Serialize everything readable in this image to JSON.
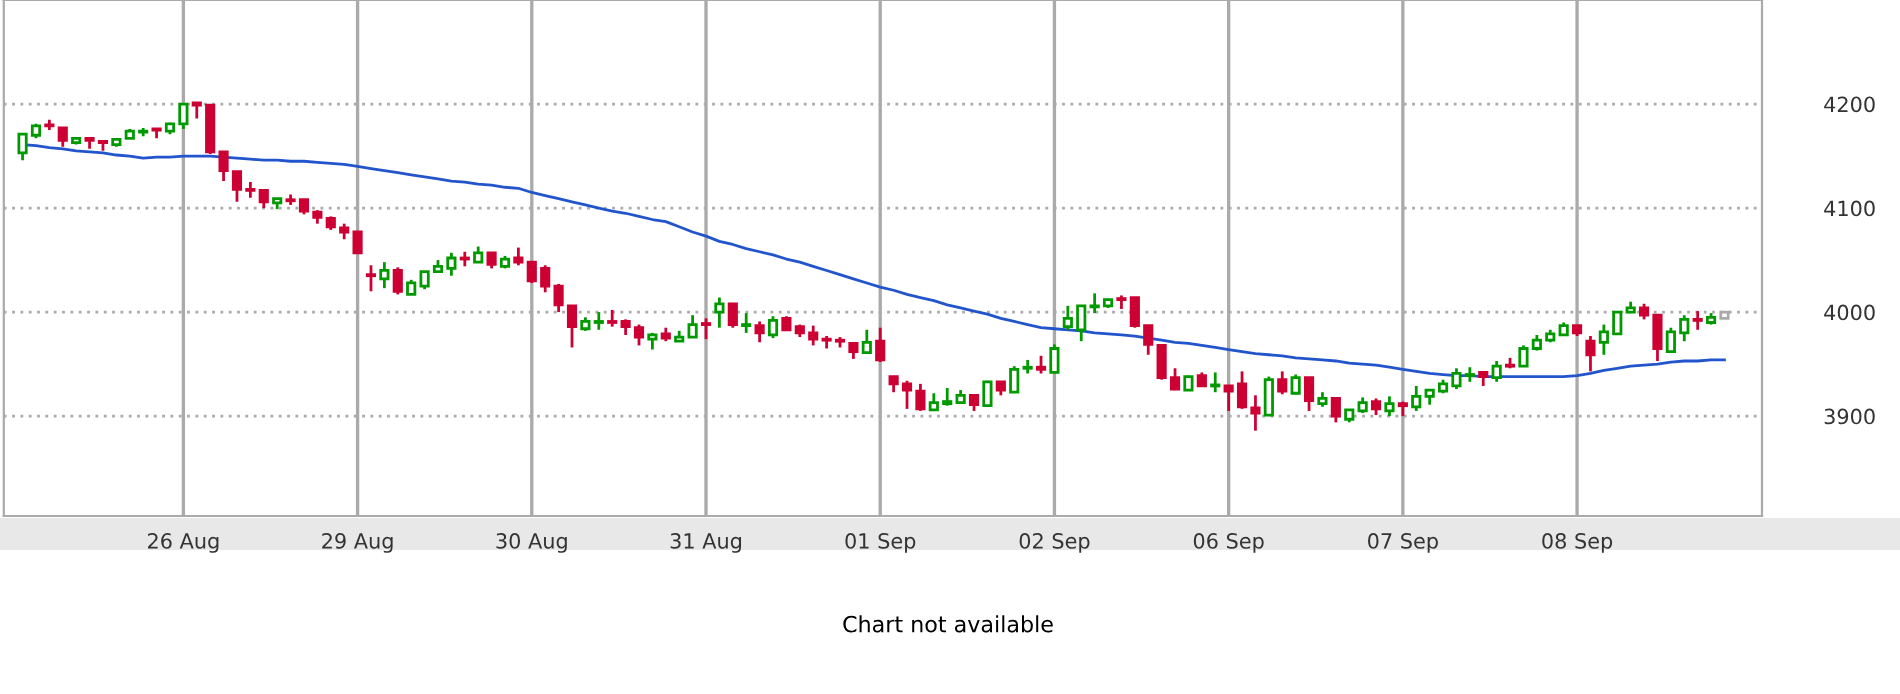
{
  "chart_data": {
    "type": "candlestick",
    "categories": [
      null,
      null,
      null,
      null,
      null,
      null,
      null,
      null,
      null,
      null,
      null,
      null,
      "26 Aug",
      null,
      null,
      null,
      null,
      null,
      null,
      null,
      null,
      null,
      null,
      null,
      null,
      "29 Aug",
      null,
      null,
      null,
      null,
      null,
      null,
      null,
      null,
      null,
      null,
      null,
      null,
      "30 Aug",
      null,
      null,
      null,
      null,
      null,
      null,
      null,
      null,
      null,
      null,
      null,
      null,
      "31 Aug",
      null,
      null,
      null,
      null,
      null,
      null,
      null,
      null,
      null,
      null,
      null,
      null,
      "01 Sep",
      null,
      null,
      null,
      null,
      null,
      null,
      null,
      null,
      null,
      null,
      null,
      null,
      "02 Sep",
      null,
      null,
      null,
      null,
      null,
      null,
      null,
      null,
      null,
      null,
      null,
      null,
      "06 Sep",
      null,
      null,
      null,
      null,
      null,
      null,
      null,
      null,
      null,
      null,
      null,
      null,
      "07 Sep",
      null,
      null,
      null,
      null,
      null,
      null,
      null,
      null,
      null,
      null,
      null,
      null,
      "08 Sep",
      null,
      null,
      null,
      null,
      null,
      null,
      null,
      null,
      null,
      null,
      null
    ],
    "ohlc": [
      [
        4153,
        4172,
        4146,
        4171
      ],
      [
        4170,
        4181,
        4167,
        4179
      ],
      [
        4180,
        4185,
        4175,
        4179
      ],
      [
        4177,
        4177,
        4159,
        4165
      ],
      [
        4163,
        4167,
        4161,
        4167
      ],
      [
        4167,
        4167,
        4157,
        4165
      ],
      [
        4164,
        4164,
        4155,
        4163
      ],
      [
        4161,
        4166,
        4159,
        4166
      ],
      [
        4167,
        4176,
        4167,
        4174
      ],
      [
        4173,
        4177,
        4169,
        4174
      ],
      [
        4176,
        4176,
        4167,
        4175
      ],
      [
        4174,
        4182,
        4171,
        4181
      ],
      [
        4181,
        4200,
        4176,
        4200
      ],
      [
        4201,
        4201,
        4186,
        4199
      ],
      [
        4199,
        4199,
        4152,
        4154
      ],
      [
        4154,
        4154,
        4126,
        4136
      ],
      [
        4135,
        4135,
        4106,
        4118
      ],
      [
        4118,
        4125,
        4110,
        4117
      ],
      [
        4117,
        4117,
        4100,
        4106
      ],
      [
        4105,
        4109,
        4099,
        4109
      ],
      [
        4108,
        4113,
        4103,
        4107
      ],
      [
        4108,
        4108,
        4094,
        4097
      ],
      [
        4096,
        4098,
        4085,
        4091
      ],
      [
        4090,
        4092,
        4079,
        4082
      ],
      [
        4081,
        4085,
        4070,
        4077
      ],
      [
        4077,
        4077,
        4057,
        4057
      ],
      [
        4036,
        4045,
        4020,
        4035
      ],
      [
        4032,
        4048,
        4023,
        4040
      ],
      [
        4040,
        4043,
        4017,
        4020
      ],
      [
        4017,
        4031,
        4017,
        4028
      ],
      [
        4025,
        4039,
        4022,
        4039
      ],
      [
        4039,
        4050,
        4039,
        4044
      ],
      [
        4042,
        4057,
        4035,
        4052
      ],
      [
        4052,
        4058,
        4044,
        4051
      ],
      [
        4048,
        4063,
        4048,
        4057
      ],
      [
        4057,
        4057,
        4042,
        4046
      ],
      [
        4044,
        4054,
        4042,
        4051
      ],
      [
        4052,
        4062,
        4045,
        4048
      ],
      [
        4048,
        4048,
        4028,
        4030
      ],
      [
        4042,
        4045,
        4019,
        4025
      ],
      [
        4025,
        4027,
        4000,
        4007
      ],
      [
        4006,
        4006,
        3966,
        3986
      ],
      [
        3984,
        3995,
        3982,
        3991
      ],
      [
        3990,
        4000,
        3983,
        3991
      ],
      [
        3991,
        4002,
        3986,
        3990
      ],
      [
        3991,
        3993,
        3978,
        3986
      ],
      [
        3985,
        3988,
        3968,
        3976
      ],
      [
        3974,
        3980,
        3964,
        3978
      ],
      [
        3979,
        3985,
        3972,
        3975
      ],
      [
        3972,
        3982,
        3972,
        3976
      ],
      [
        3976,
        3997,
        3976,
        3988
      ],
      [
        3989,
        3994,
        3974,
        3988
      ],
      [
        4000,
        4014,
        3985,
        4008
      ],
      [
        4008,
        4008,
        3985,
        3988
      ],
      [
        3987,
        3999,
        3980,
        3988
      ],
      [
        3987,
        3991,
        3971,
        3980
      ],
      [
        3978,
        3996,
        3975,
        3992
      ],
      [
        3994,
        3996,
        3983,
        3983
      ],
      [
        3986,
        3988,
        3976,
        3980
      ],
      [
        3980,
        3987,
        3968,
        3974
      ],
      [
        3974,
        3977,
        3965,
        3973
      ],
      [
        3973,
        3976,
        3966,
        3972
      ],
      [
        3970,
        3970,
        3955,
        3962
      ],
      [
        3961,
        3983,
        3961,
        3971
      ],
      [
        3972,
        3985,
        3952,
        3954
      ],
      [
        3938,
        3938,
        3923,
        3931
      ],
      [
        3931,
        3934,
        3907,
        3925
      ],
      [
        3924,
        3931,
        3905,
        3907
      ],
      [
        3906,
        3922,
        3906,
        3913
      ],
      [
        3912,
        3927,
        3910,
        3914
      ],
      [
        3913,
        3925,
        3913,
        3920
      ],
      [
        3920,
        3920,
        3905,
        3911
      ],
      [
        3910,
        3934,
        3909,
        3933
      ],
      [
        3933,
        3933,
        3920,
        3925
      ],
      [
        3923,
        3948,
        3923,
        3945
      ],
      [
        3946,
        3954,
        3941,
        3947
      ],
      [
        3947,
        3958,
        3941,
        3945
      ],
      [
        3942,
        3969,
        3941,
        3965
      ],
      [
        3986,
        4006,
        3983,
        3994
      ],
      [
        3983,
        4006,
        3972,
        4006
      ],
      [
        4005,
        4018,
        3999,
        4006
      ],
      [
        4006,
        4013,
        4004,
        4012
      ],
      [
        4013,
        4016,
        4003,
        4012
      ],
      [
        4014,
        4014,
        3985,
        3987
      ],
      [
        3987,
        3987,
        3959,
        3969
      ],
      [
        3968,
        3968,
        3935,
        3937
      ],
      [
        3937,
        3946,
        3925,
        3926
      ],
      [
        3925,
        3939,
        3925,
        3938
      ],
      [
        3939,
        3942,
        3928,
        3929
      ],
      [
        3929,
        3942,
        3923,
        3930
      ],
      [
        3929,
        3929,
        3905,
        3924
      ],
      [
        3931,
        3943,
        3907,
        3909
      ],
      [
        3908,
        3920,
        3886,
        3903
      ],
      [
        3901,
        3938,
        3901,
        3935
      ],
      [
        3935,
        3943,
        3921,
        3924
      ],
      [
        3922,
        3940,
        3921,
        3937
      ],
      [
        3937,
        3937,
        3905,
        3915
      ],
      [
        3912,
        3923,
        3909,
        3917
      ],
      [
        3917,
        3917,
        3894,
        3900
      ],
      [
        3897,
        3906,
        3894,
        3906
      ],
      [
        3905,
        3918,
        3903,
        3913
      ],
      [
        3914,
        3917,
        3901,
        3907
      ],
      [
        3905,
        3919,
        3900,
        3912
      ],
      [
        3912,
        3914,
        3900,
        3910
      ],
      [
        3909,
        3929,
        3905,
        3919
      ],
      [
        3919,
        3925,
        3911,
        3925
      ],
      [
        3924,
        3935,
        3922,
        3931
      ],
      [
        3929,
        3946,
        3926,
        3941
      ],
      [
        3939,
        3947,
        3933,
        3940
      ],
      [
        3942,
        3942,
        3929,
        3938
      ],
      [
        3937,
        3953,
        3933,
        3948
      ],
      [
        3949,
        3956,
        3946,
        3948
      ],
      [
        3948,
        3968,
        3948,
        3965
      ],
      [
        3965,
        3978,
        3963,
        3973
      ],
      [
        3973,
        3983,
        3971,
        3979
      ],
      [
        3978,
        3990,
        3978,
        3987
      ],
      [
        3987,
        3987,
        3977,
        3980
      ],
      [
        3972,
        3977,
        3943,
        3959
      ],
      [
        3971,
        3988,
        3959,
        3981
      ],
      [
        3979,
        4000,
        3979,
        4000
      ],
      [
        4000,
        4010,
        4000,
        4004
      ],
      [
        4004,
        4008,
        3993,
        3997
      ],
      [
        3997,
        3997,
        3953,
        3965
      ],
      [
        3962,
        3985,
        3962,
        3981
      ],
      [
        3980,
        3997,
        3972,
        3993
      ],
      [
        3993,
        4001,
        3983,
        3992
      ],
      [
        3990,
        3999,
        3988,
        3995
      ],
      [
        3994,
        4000,
        3994,
        4000
      ]
    ],
    "colors": [
      "#009900",
      "#009900",
      "#cc0033",
      "#cc0033",
      "#009900",
      "#cc0033",
      "#cc0033",
      "#009900",
      "#009900",
      "#009900",
      "#cc0033",
      "#009900",
      "#009900",
      "#cc0033",
      "#cc0033",
      "#cc0033",
      "#cc0033",
      "#cc0033",
      "#cc0033",
      "#009900",
      "#cc0033",
      "#cc0033",
      "#cc0033",
      "#cc0033",
      "#cc0033",
      "#cc0033",
      "#cc0033",
      "#009900",
      "#cc0033",
      "#009900",
      "#009900",
      "#009900",
      "#009900",
      "#cc0033",
      "#009900",
      "#cc0033",
      "#009900",
      "#cc0033",
      "#cc0033",
      "#cc0033",
      "#cc0033",
      "#cc0033",
      "#009900",
      "#009900",
      "#cc0033",
      "#cc0033",
      "#cc0033",
      "#009900",
      "#cc0033",
      "#009900",
      "#009900",
      "#cc0033",
      "#009900",
      "#cc0033",
      "#009900",
      "#cc0033",
      "#009900",
      "#cc0033",
      "#cc0033",
      "#cc0033",
      "#cc0033",
      "#cc0033",
      "#cc0033",
      "#009900",
      "#cc0033",
      "#cc0033",
      "#cc0033",
      "#cc0033",
      "#009900",
      "#009900",
      "#009900",
      "#cc0033",
      "#009900",
      "#cc0033",
      "#009900",
      "#009900",
      "#cc0033",
      "#009900",
      "#009900",
      "#009900",
      "#009900",
      "#009900",
      "#cc0033",
      "#cc0033",
      "#cc0033",
      "#cc0033",
      "#cc0033",
      "#009900",
      "#cc0033",
      "#009900",
      "#cc0033",
      "#cc0033",
      "#cc0033",
      "#009900",
      "#cc0033",
      "#009900",
      "#cc0033",
      "#009900",
      "#cc0033",
      "#009900",
      "#009900",
      "#cc0033",
      "#009900",
      "#cc0033",
      "#009900",
      "#009900",
      "#009900",
      "#009900",
      "#009900",
      "#cc0033",
      "#009900",
      "#cc0033",
      "#009900",
      "#009900",
      "#009900",
      "#009900",
      "#cc0033",
      "#cc0033",
      "#009900",
      "#009900",
      "#009900",
      "#cc0033",
      "#cc0033",
      "#009900",
      "#009900",
      "#cc0033",
      "#009900",
      "#aaaaaa"
    ],
    "series": [
      {
        "type": "line",
        "color": "#2255cc",
        "values": [
          4161,
          4160,
          4158,
          4157,
          4155,
          4154,
          4153,
          4151,
          4150,
          4148,
          4149,
          4149,
          4150,
          4150,
          4150,
          4149,
          4148,
          4147,
          4146,
          4146,
          4145,
          4145,
          4144,
          4143,
          4142,
          4140,
          4138,
          4136,
          4134,
          4132,
          4130,
          4128,
          4126,
          4125,
          4123,
          4122,
          4120,
          4119,
          4115,
          4112,
          4109,
          4106,
          4103,
          4100,
          4097,
          4095,
          4092,
          4089,
          4087,
          4082,
          4077,
          4073,
          4068,
          4065,
          4061,
          4058,
          4055,
          4051,
          4048,
          4044,
          4040,
          4036,
          4032,
          4028,
          4024,
          4021,
          4017,
          4014,
          4011,
          4007,
          4004,
          4001,
          3998,
          3994,
          3991,
          3988,
          3985,
          3984,
          3983,
          3982,
          3980,
          3979,
          3978,
          3977,
          3975,
          3973,
          3971,
          3970,
          3968,
          3966,
          3964,
          3962,
          3960,
          3959,
          3958,
          3956,
          3955,
          3954,
          3953,
          3951,
          3950,
          3949,
          3947,
          3945,
          3943,
          3941,
          3940,
          3939,
          3939,
          3938,
          3938,
          3938,
          3938,
          3938,
          3938,
          3938,
          3939,
          3941,
          3944,
          3946,
          3948,
          3949,
          3950,
          3952,
          3953,
          3953,
          3954,
          3954
        ]
      }
    ],
    "ylim": [
      3804,
      4300
    ],
    "yticks": [
      3900,
      4000,
      4100,
      4200
    ],
    "grid": true,
    "annotations": [
      "Chart not available"
    ]
  }
}
